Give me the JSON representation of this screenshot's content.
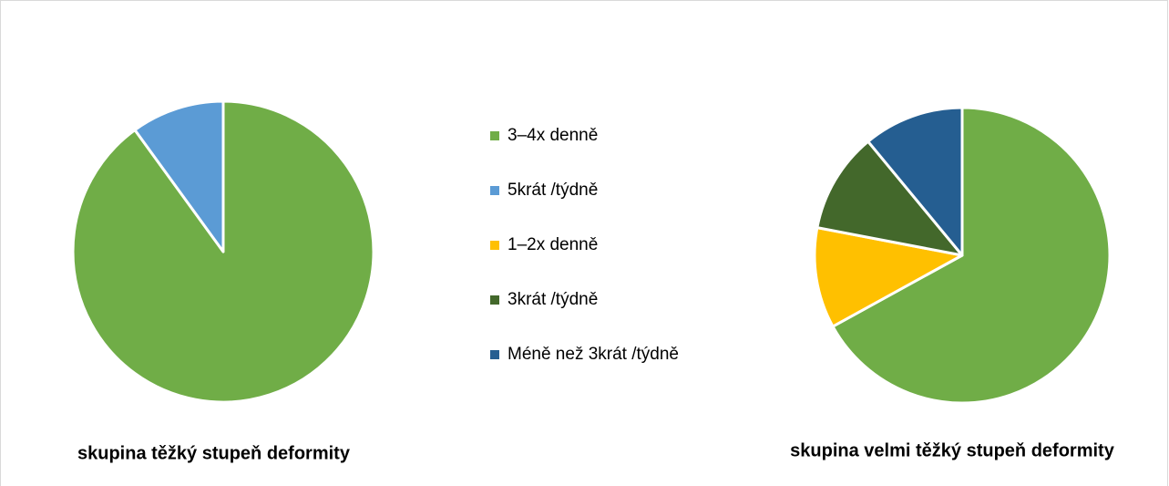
{
  "chart_data": [
    {
      "type": "pie",
      "title": "skupina těžký stupeň deformity",
      "categories": [
        "3–4x denně",
        "5krát /týdně",
        "1–2x denně",
        "3krát /týdně",
        "Méně než 3krát /týdně"
      ],
      "values": [
        90,
        10,
        0,
        0,
        0
      ],
      "colors": [
        "#70ad47",
        "#5b9bd5",
        "#ffc000",
        "#43682b",
        "#255e91"
      ]
    },
    {
      "type": "pie",
      "title": "skupina velmi těžký stupeň deformity",
      "categories": [
        "3–4x denně",
        "5krát /týdně",
        "1–2x denně",
        "3krát /týdně",
        "Méně než 3krát /týdně"
      ],
      "values": [
        67,
        0,
        11,
        11,
        11
      ],
      "colors": [
        "#70ad47",
        "#5b9bd5",
        "#ffc000",
        "#43682b",
        "#255e91"
      ]
    }
  ]
}
